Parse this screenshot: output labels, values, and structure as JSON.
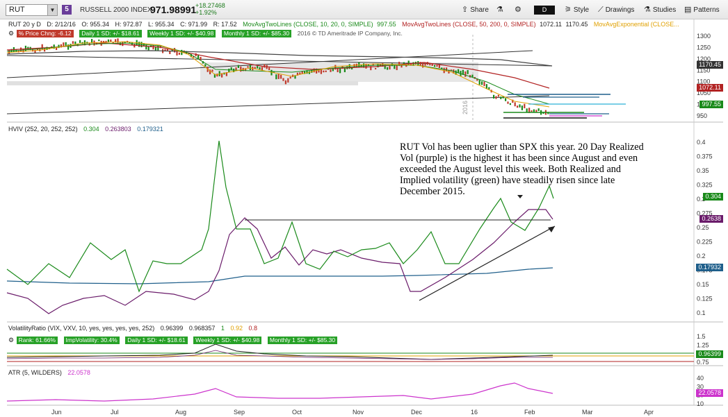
{
  "toolbar": {
    "symbol": "RUT",
    "link_number": "5",
    "description": "RUSSELL 2000 INDEX",
    "last": "971.98991",
    "net_change": "+18.27468",
    "pct_change": "+1.92%",
    "share_label": "Share",
    "style_label": "Style",
    "drawings_label": "Drawings",
    "studies_label": "Studies",
    "patterns_label": "Patterns",
    "aggregation": "D"
  },
  "price_pane": {
    "header": {
      "period": "RUT 20 y D",
      "date": "D: 2/12/16",
      "open": "O: 955.34",
      "high": "H: 972.87",
      "low": "L: 955.34",
      "close": "C: 971.99",
      "range": "R: 17.52",
      "ma1": "MovAvgTwoLines (CLOSE, 10, 20, 0, SIMPLE)",
      "ma1_val": "997.55",
      "ma2": "MovAvgTwoLines (CLOSE, 50, 200, 0, SIMPLE)",
      "ma2_val": "1072.11",
      "ma2_val2": "1170.45",
      "ma3": "MovAvgExponential (CLOSE..."
    },
    "badges": {
      "pct_price": "% Price Chng: -6.12",
      "daily": "Daily 1 SD: +/- $18.61",
      "weekly": "Weekly 1 SD: +/- $40.98",
      "monthly": "Monthly 1 SD: +/- $85.30",
      "copyright": "2016 © TD Ameritrade IP Company, Inc."
    },
    "yticks": [
      "1300",
      "1250",
      "1200",
      "1150",
      "1100",
      "1050",
      "1000",
      "950"
    ],
    "labels": [
      {
        "text": "1170.45",
        "color": "#333333"
      },
      {
        "text": "1072.11",
        "color": "#b22222"
      },
      {
        "text": "997.55",
        "color": "#1a8a1a"
      }
    ],
    "year_label": "2016"
  },
  "hv_pane": {
    "header": {
      "name": "HVIV (252, 20, 252, 252)",
      "v1": "0.304",
      "v2": "0.263803",
      "v3": "0.179321"
    },
    "yticks": [
      "0.4",
      "0.375",
      "0.35",
      "0.325",
      "0.3",
      "0.275",
      "0.25",
      "0.225",
      "0.2",
      "0.175",
      "0.15",
      "0.125",
      "0.1"
    ],
    "labels": [
      {
        "text": "0.304",
        "color": "#1a8a1a"
      },
      {
        "text": "0.2638",
        "color": "#6a1b6a"
      },
      {
        "text": "0.17932",
        "color": "#1f5f8b"
      }
    ],
    "annotation": "RUT Vol has been uglier than SPX this year.  20 Day Realized Vol (purple)  is the highest it has been since August and even exceeded the August level this week.  Both Realized and Implied volatility (green) have steadily risen since late December 2015."
  },
  "vr_pane": {
    "header": {
      "name": "VolatilityRatio (VIX, VXV, 10, yes, yes, yes, yes, 252)",
      "v1": "0.96399",
      "v2": "0.968357",
      "v3": "1",
      "v4": "0.92",
      "v5": "0.8"
    },
    "badges": {
      "rank": "Rank: 61.66%",
      "impvol": "ImpVolatility: 30.4%",
      "daily": "Daily 1 SD: +/- $18.61",
      "weekly": "Weekly 1 SD: +/- $40.98",
      "monthly": "Monthly 1 SD: +/- $85.30"
    },
    "yticks": [
      "1.5",
      "1.25",
      "1",
      "0.75"
    ],
    "label": "0.96399"
  },
  "atr_pane": {
    "header": {
      "name": "ATR (5, WILDERS)",
      "v1": "22.0578"
    },
    "yticks": [
      "40",
      "30",
      "20",
      "10"
    ],
    "label": "22.0578"
  },
  "xaxis": [
    "Jun",
    "Jul",
    "Aug",
    "Sep",
    "Oct",
    "Nov",
    "Dec",
    "16",
    "Feb",
    "Mar",
    "Apr"
  ],
  "colors": {
    "green": "#1a8a1a",
    "purple": "#6a1b6a",
    "blue": "#1f5f8b",
    "red": "#b22222",
    "magenta": "#cc33cc"
  }
}
